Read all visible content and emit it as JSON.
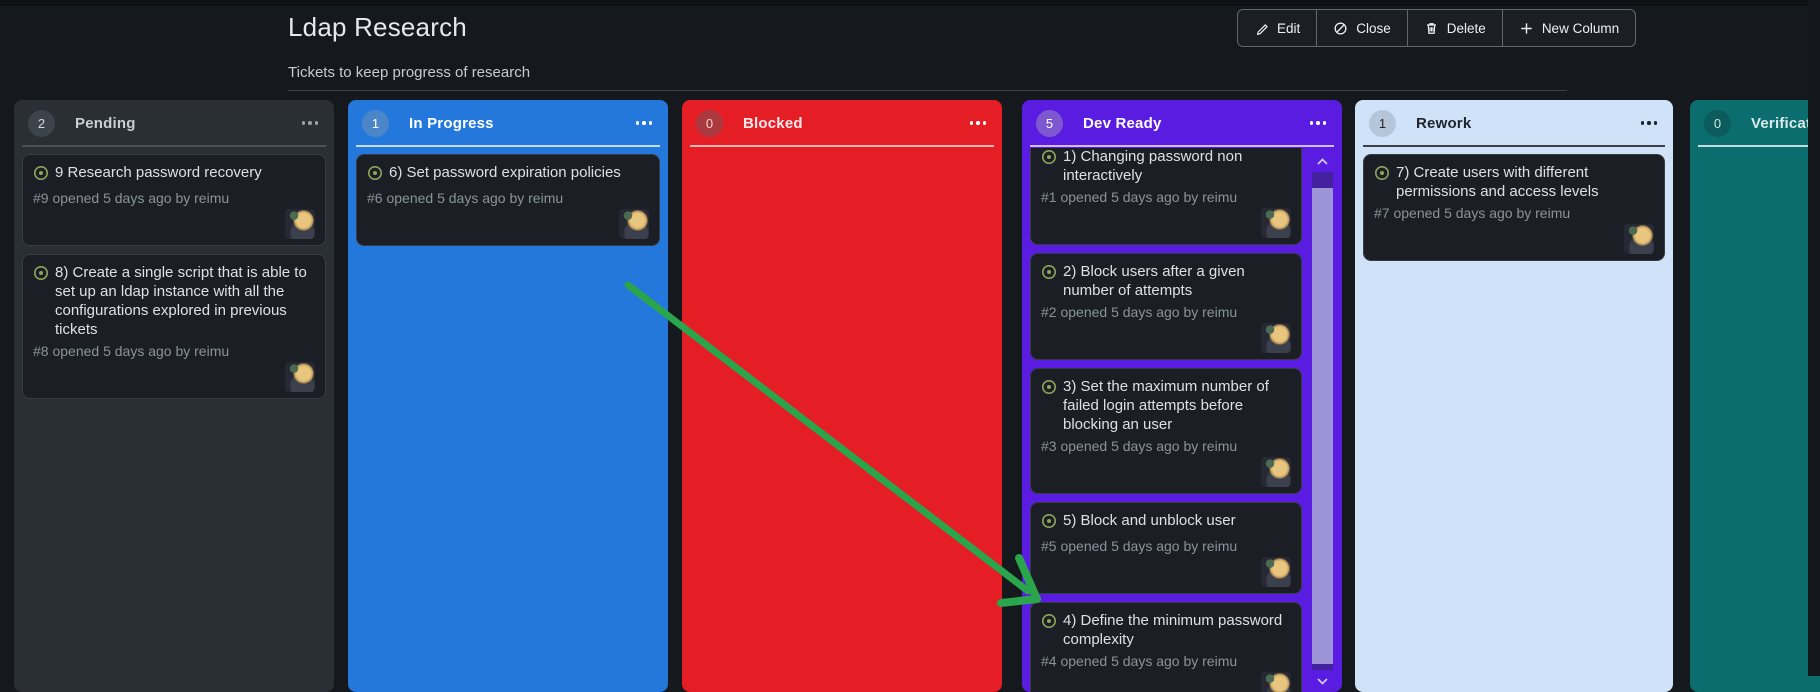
{
  "page": {
    "title": "Ldap Research",
    "subtitle": "Tickets to keep progress of research"
  },
  "toolbar": {
    "buttons": [
      {
        "label": "Edit",
        "icon": "pencil-icon"
      },
      {
        "label": "Close",
        "icon": "circle-slash-icon"
      },
      {
        "label": "Delete",
        "icon": "trash-icon"
      },
      {
        "label": "New Column",
        "icon": "plus-icon"
      }
    ]
  },
  "columns": [
    {
      "id": "pending",
      "count": "2",
      "title": "Pending",
      "color": "#2a2e35",
      "badge_bg": "#3d434b",
      "badge_fg": "#d3d9df",
      "title_color": "#c9cfd5",
      "separator": "#4b5158",
      "kebab": "#9aa1a8",
      "cards": [
        {
          "title": "9 Research password recovery",
          "meta": "#9 opened 5 days ago by reimu"
        },
        {
          "title": "8) Create a single script that is able to set up an ldap instance with all the configurations explored in previous tickets",
          "meta": "#8 opened 5 days ago by reimu"
        }
      ]
    },
    {
      "id": "inprogress",
      "count": "1",
      "title": "In Progress",
      "color": "#2478dc",
      "badge_bg": "#4b86c9",
      "badge_fg": "#ffffff",
      "title_color": "#ffffff",
      "separator": "#c4dcf5",
      "kebab": "#ffffff",
      "cards": [
        {
          "title": "6) Set password expiration policies",
          "meta": "#6 opened 5 days ago by reimu"
        }
      ]
    },
    {
      "id": "blocked",
      "count": "0",
      "title": "Blocked",
      "color": "#e41e24",
      "badge_bg": "#ab3a40",
      "badge_fg": "#ffd0d2",
      "title_color": "#ffe9ea",
      "separator": "#f2b6b8",
      "kebab": "#ffffff",
      "cards": []
    },
    {
      "id": "devready",
      "count": "5",
      "title": "Dev Ready",
      "color": "#5a1ce0",
      "badge_bg": "#7e58d0",
      "badge_fg": "#ffffff",
      "title_color": "#ffffff",
      "separator": "#cdbff2",
      "kebab": "#ffffff",
      "scrollable": true,
      "cards": [
        {
          "title": "1) Changing password non interactively",
          "meta": "#1 opened 5 days ago by reimu"
        },
        {
          "title": "2) Block users after a given number of attempts",
          "meta": "#2 opened 5 days ago by reimu"
        },
        {
          "title": "3) Set the maximum number of failed login attempts before blocking an user",
          "meta": "#3 opened 5 days ago by reimu"
        },
        {
          "title": "5) Block and unblock user",
          "meta": "#5 opened 5 days ago by reimu"
        },
        {
          "title": "4) Define the minimum password complexity",
          "meta": "#4 opened 5 days ago by reimu"
        }
      ]
    },
    {
      "id": "rework",
      "count": "1",
      "title": "Rework",
      "color": "#cfe2f7",
      "badge_bg": "#b5c6da",
      "badge_fg": "#1e242b",
      "title_color": "#20252b",
      "separator": "#394049",
      "kebab": "#1f242a",
      "cards": [
        {
          "title": "7) Create users with different permissions and access levels",
          "meta": "#7 opened 5 days ago by reimu"
        }
      ]
    },
    {
      "id": "verification",
      "count": "0",
      "title": "Verification",
      "color": "#0b6d6e",
      "badge_bg": "#0c5c5d",
      "badge_fg": "#cfe0e0",
      "title_color": "#d9e8e8",
      "separator": "#c6dcdc",
      "kebab": "#d9e8e8",
      "cards": []
    }
  ],
  "colors": {
    "arrow": "#2aa54b",
    "card_bg": "#1b1f25",
    "card_border": "#363c44",
    "card_title": "#dde1e6",
    "card_meta": "#8a929c",
    "issue_icon": "#8ea55c"
  }
}
